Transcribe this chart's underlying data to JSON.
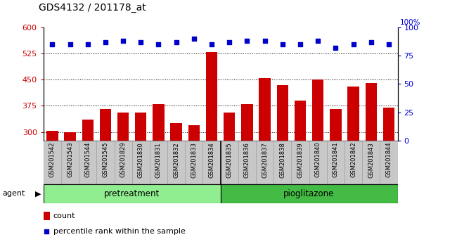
{
  "title": "GDS4132 / 201178_at",
  "samples": [
    "GSM201542",
    "GSM201543",
    "GSM201544",
    "GSM201545",
    "GSM201829",
    "GSM201830",
    "GSM201831",
    "GSM201832",
    "GSM201833",
    "GSM201834",
    "GSM201835",
    "GSM201836",
    "GSM201837",
    "GSM201838",
    "GSM201839",
    "GSM201840",
    "GSM201841",
    "GSM201842",
    "GSM201843",
    "GSM201844"
  ],
  "counts": [
    303,
    299,
    335,
    365,
    355,
    355,
    380,
    325,
    320,
    530,
    355,
    380,
    455,
    435,
    390,
    450,
    365,
    430,
    440,
    370
  ],
  "percentile": [
    85,
    85,
    85,
    87,
    88,
    87,
    85,
    87,
    90,
    85,
    87,
    88,
    88,
    85,
    85,
    88,
    82,
    85,
    87,
    85
  ],
  "pretreatment_count": 10,
  "pioglitazone_count": 10,
  "pretreatment_label": "pretreatment",
  "pioglitazone_label": "pioglitazone",
  "agent_label": "agent",
  "ylim_left": [
    275,
    600
  ],
  "ylim_right": [
    0,
    100
  ],
  "yticks_left": [
    300,
    375,
    450,
    525,
    600
  ],
  "yticks_right": [
    0,
    25,
    50,
    75,
    100
  ],
  "bar_color": "#CC0000",
  "dot_color": "#0000CC",
  "bar_width": 0.65,
  "title_fontsize": 10,
  "tick_color_left": "#CC0000",
  "tick_color_right": "#0000CC",
  "pretreatment_color": "#90EE90",
  "pioglitazone_color": "#44BB44",
  "sample_bg_color": "#C8C8C8",
  "legend_count_label": "count",
  "legend_pct_label": "percentile rank within the sample"
}
